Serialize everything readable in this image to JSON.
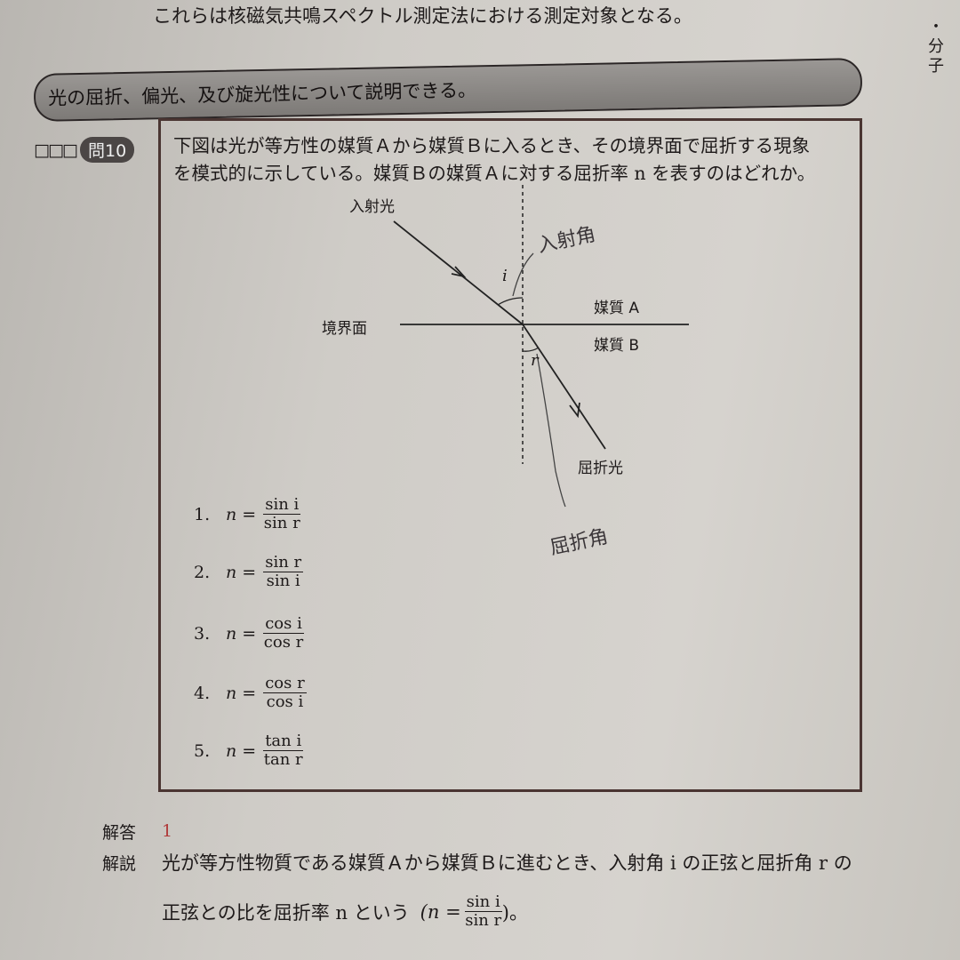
{
  "top_line": "これらは核磁気共鳴スペクトル測定法における測定対象となる。",
  "side_label": "・分子",
  "section_banner": "光の屈折、偏光、及び旋光性について説明できる。",
  "question": {
    "checkboxes": "□□□",
    "badge": "問10",
    "text_line1": "下図は光が等方性の媒質Ａから媒質Ｂに入るとき、その境界面で屈折する現象",
    "text_line2": "を模式的に示している。媒質Ｂの媒質Ａに対する屈折率 n を表すのはどれか。"
  },
  "diagram": {
    "incident_label": "入射光",
    "interface_label": "境界面",
    "medium_a": "媒質 A",
    "medium_b": "媒質 B",
    "refracted_label": "屈折光",
    "angle_i": "i",
    "angle_r": "r",
    "handwritten_incident": "入射角",
    "handwritten_refraction": "屈折角"
  },
  "options": [
    {
      "num": "1.",
      "lhs": "n =",
      "numerator": "sin i",
      "denominator": "sin r"
    },
    {
      "num": "2.",
      "lhs": "n =",
      "numerator": "sin r",
      "denominator": "sin i"
    },
    {
      "num": "3.",
      "lhs": "n =",
      "numerator": "cos i",
      "denominator": "cos r"
    },
    {
      "num": "4.",
      "lhs": "n =",
      "numerator": "cos r",
      "denominator": "cos i"
    },
    {
      "num": "5.",
      "lhs": "n =",
      "numerator": "tan i",
      "denominator": "tan r"
    }
  ],
  "answer": {
    "label": "解答",
    "value": "1"
  },
  "explanation": {
    "label": "解説",
    "line1": "光が等方性物質である媒質Ａから媒質Ｂに進むとき、入射角 i の正弦と屈折角 r の",
    "line2": "正弦との比を屈折率 n という",
    "formula_lhs": "(n =",
    "formula_num": "sin i",
    "formula_den": "sin r",
    "formula_end": ")。"
  }
}
